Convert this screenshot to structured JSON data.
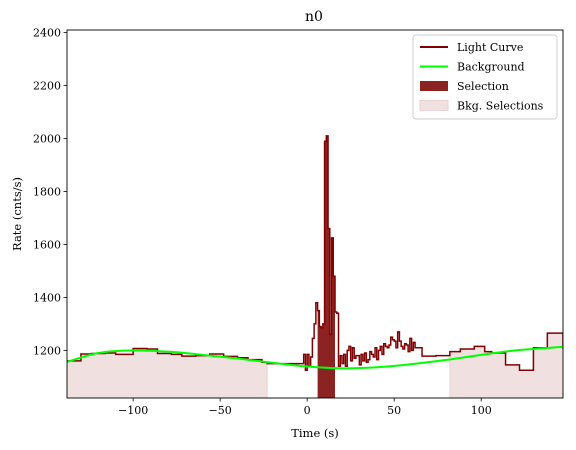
{
  "chart_data": {
    "type": "line",
    "title": "n0",
    "xlabel": "Time (s)",
    "ylabel": "Rate (cnts/s)",
    "xlim": [
      -138,
      147
    ],
    "ylim": [
      1020,
      2410
    ],
    "xticks": [
      -100,
      -50,
      0,
      50,
      100
    ],
    "xtick_labels": [
      "−100",
      "−50",
      "0",
      "50",
      "100"
    ],
    "yticks": [
      1200,
      1400,
      1600,
      1800,
      2000,
      2200,
      2400
    ],
    "ytick_labels": [
      "1200",
      "1400",
      "1600",
      "1800",
      "2000",
      "2200",
      "2400"
    ],
    "legend_position": "upper right",
    "colors": {
      "light_curve": "#800000",
      "background": "#00ff00",
      "selection": "#8b2323",
      "bkg_selection": "#f0e0e0",
      "bkg_selection_edge": "#e6cccc"
    },
    "legend": [
      {
        "key": "light_curve",
        "label": "Light Curve",
        "kind": "line"
      },
      {
        "key": "background",
        "label": "Background",
        "kind": "line"
      },
      {
        "key": "selection",
        "label": "Selection",
        "kind": "patch"
      },
      {
        "key": "bkg_selection",
        "label": "Bkg. Selections",
        "kind": "patch"
      }
    ],
    "selection_interval": [
      6,
      16
    ],
    "bkg_selection_intervals": [
      [
        -138,
        -23
      ],
      [
        82,
        147
      ]
    ],
    "background_model": {
      "x": [
        -138,
        -120,
        -100,
        -80,
        -60,
        -40,
        -20,
        0,
        20,
        40,
        60,
        80,
        100,
        120,
        140,
        147
      ],
      "y": [
        1156,
        1190,
        1200,
        1195,
        1183,
        1169,
        1153,
        1139,
        1132,
        1136,
        1148,
        1164,
        1183,
        1200,
        1210,
        1213
      ]
    },
    "light_curve": {
      "x": [
        -138,
        -130,
        -124,
        -116,
        -110,
        -100,
        -92,
        -86,
        -78,
        -72,
        -64,
        -56,
        -48,
        -40,
        -34,
        -26,
        -23,
        -2,
        -1,
        0,
        1,
        2,
        3,
        4,
        5,
        6,
        7,
        8,
        9,
        10,
        11,
        12,
        13,
        14,
        15,
        16,
        17,
        18,
        19,
        20,
        21,
        22,
        23,
        24,
        25,
        26,
        27,
        28,
        29,
        30,
        31,
        32,
        33,
        34,
        35,
        36,
        37,
        38,
        39,
        40,
        41,
        42,
        43,
        44,
        45,
        46,
        47,
        48,
        49,
        50,
        51,
        52,
        53,
        54,
        55,
        56,
        57,
        58,
        59,
        60,
        61,
        62,
        66,
        74,
        82,
        88,
        96,
        102,
        106,
        114,
        122,
        130,
        138,
        147
      ],
      "y": [
        1160,
        1186,
        1188,
        1190,
        1185,
        1207,
        1205,
        1188,
        1185,
        1178,
        1180,
        1186,
        1177,
        1172,
        1165,
        1155,
        1150,
        1185,
        1125,
        1185,
        1140,
        1175,
        1245,
        1300,
        1380,
        1350,
        1290,
        1285,
        1300,
        1990,
        2010,
        1660,
        1260,
        1625,
        1480,
        1345,
        1340,
        1140,
        1180,
        1150,
        1185,
        1140,
        1200,
        1215,
        1160,
        1210,
        1170,
        1180,
        1180,
        1145,
        1185,
        1160,
        1190,
        1155,
        1165,
        1195,
        1185,
        1175,
        1210,
        1165,
        1200,
        1215,
        1185,
        1225,
        1215,
        1210,
        1220,
        1250,
        1240,
        1235,
        1210,
        1270,
        1235,
        1215,
        1205,
        1225,
        1220,
        1195,
        1245,
        1200,
        1230,
        1210,
        1178,
        1180,
        1195,
        1205,
        1215,
        1195,
        1190,
        1145,
        1125,
        1210,
        1265,
        1205
      ]
    }
  }
}
